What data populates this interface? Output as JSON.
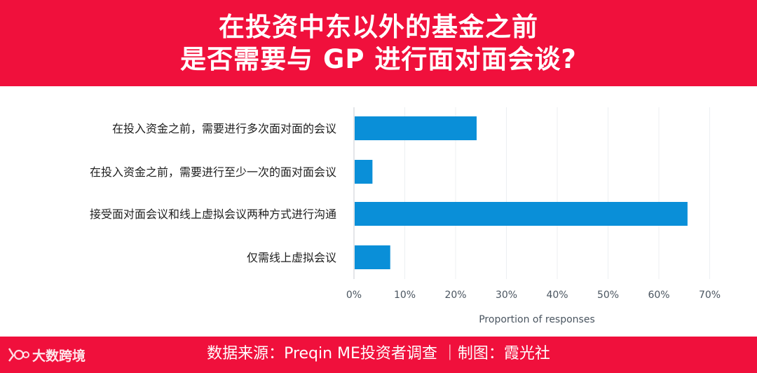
{
  "header": {
    "title_line1": "在投资中东以外的基金之前",
    "title_line2": "是否需要与 GP 进行面对面会谈?"
  },
  "footer": {
    "source": "数据来源：Preqin ME投资者调查 ｜制图：霞光社",
    "logo_text": "大数跨境"
  },
  "colors": {
    "brand_red": "#f0103c",
    "bar": "#0a8fd8"
  },
  "chart_data": {
    "type": "bar",
    "orientation": "horizontal",
    "categories": [
      "在投入资金之前，需要进行多次面对面的会议",
      "在投入资金之前，需要进行至少一次的面对面会议",
      "接受面对面会议和线上虚拟会议两种方式进行沟通",
      "仅需线上虚拟会议"
    ],
    "values": [
      24,
      3.5,
      65.5,
      7
    ],
    "xlim": [
      0,
      70
    ],
    "ticks": [
      "0%",
      "10%",
      "20%",
      "30%",
      "40%",
      "50%",
      "60%",
      "70%"
    ],
    "xlabel": "Proportion of responses",
    "grid": true
  }
}
